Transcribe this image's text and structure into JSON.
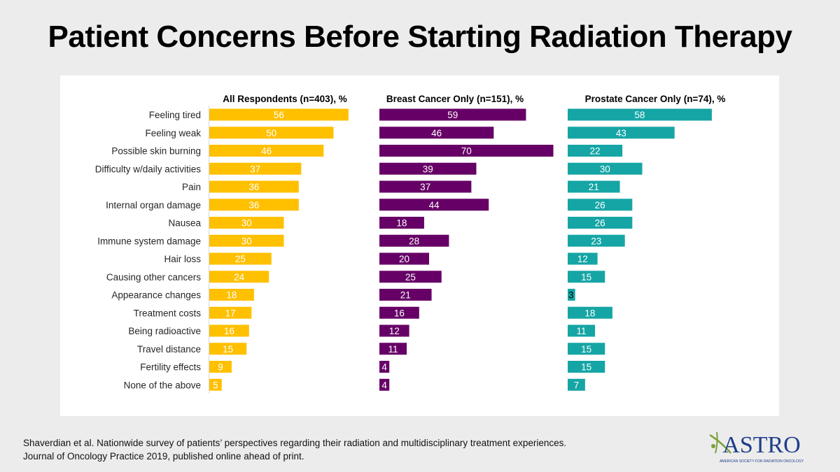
{
  "page": {
    "title": "Patient Concerns Before Starting Radiation Therapy",
    "citation_line1": "Shaverdian et al. Nationwide survey of patients’ perspectives regarding their radiation and multidisciplinary treatment experiences.",
    "citation_line2": "Journal of Oncology Practice 2019, published online ahead of print."
  },
  "logo": {
    "wordmark": "ASTRO",
    "tagline": "AMERICAN SOCIETY FOR RADIATION ONCOLOGY",
    "color_a": "#7aa23a",
    "color_text": "#1f3d8a"
  },
  "chart_data": {
    "type": "bar",
    "orientation": "horizontal",
    "categories": [
      "Feeling tired",
      "Feeling weak",
      "Possible skin burning",
      "Difficulty w/daily activities",
      "Pain",
      "Internal organ damage",
      "Nausea",
      "Immune system damage",
      "Hair loss",
      "Causing other cancers",
      "Appearance changes",
      "Treatment costs",
      "Being radioactive",
      "Travel distance",
      "Fertility effects",
      "None of the above"
    ],
    "series": [
      {
        "name": "All Respondents (n=403), %",
        "color": "#ffc000",
        "values": [
          56,
          50,
          46,
          37,
          36,
          36,
          30,
          30,
          25,
          24,
          18,
          17,
          16,
          15,
          9,
          5
        ]
      },
      {
        "name": "Breast Cancer Only (n=151), %",
        "color": "#660066",
        "values": [
          59,
          46,
          70,
          39,
          37,
          44,
          18,
          28,
          20,
          25,
          21,
          16,
          12,
          11,
          4,
          4
        ]
      },
      {
        "name": "Prostate Cancer Only (n=74), %",
        "color": "#16a5a5",
        "values": [
          58,
          43,
          22,
          30,
          21,
          26,
          26,
          23,
          12,
          15,
          3,
          18,
          11,
          15,
          15,
          7
        ]
      }
    ],
    "data_labels": true,
    "label_color": "#ffffff",
    "grid": false,
    "legend": "none"
  }
}
